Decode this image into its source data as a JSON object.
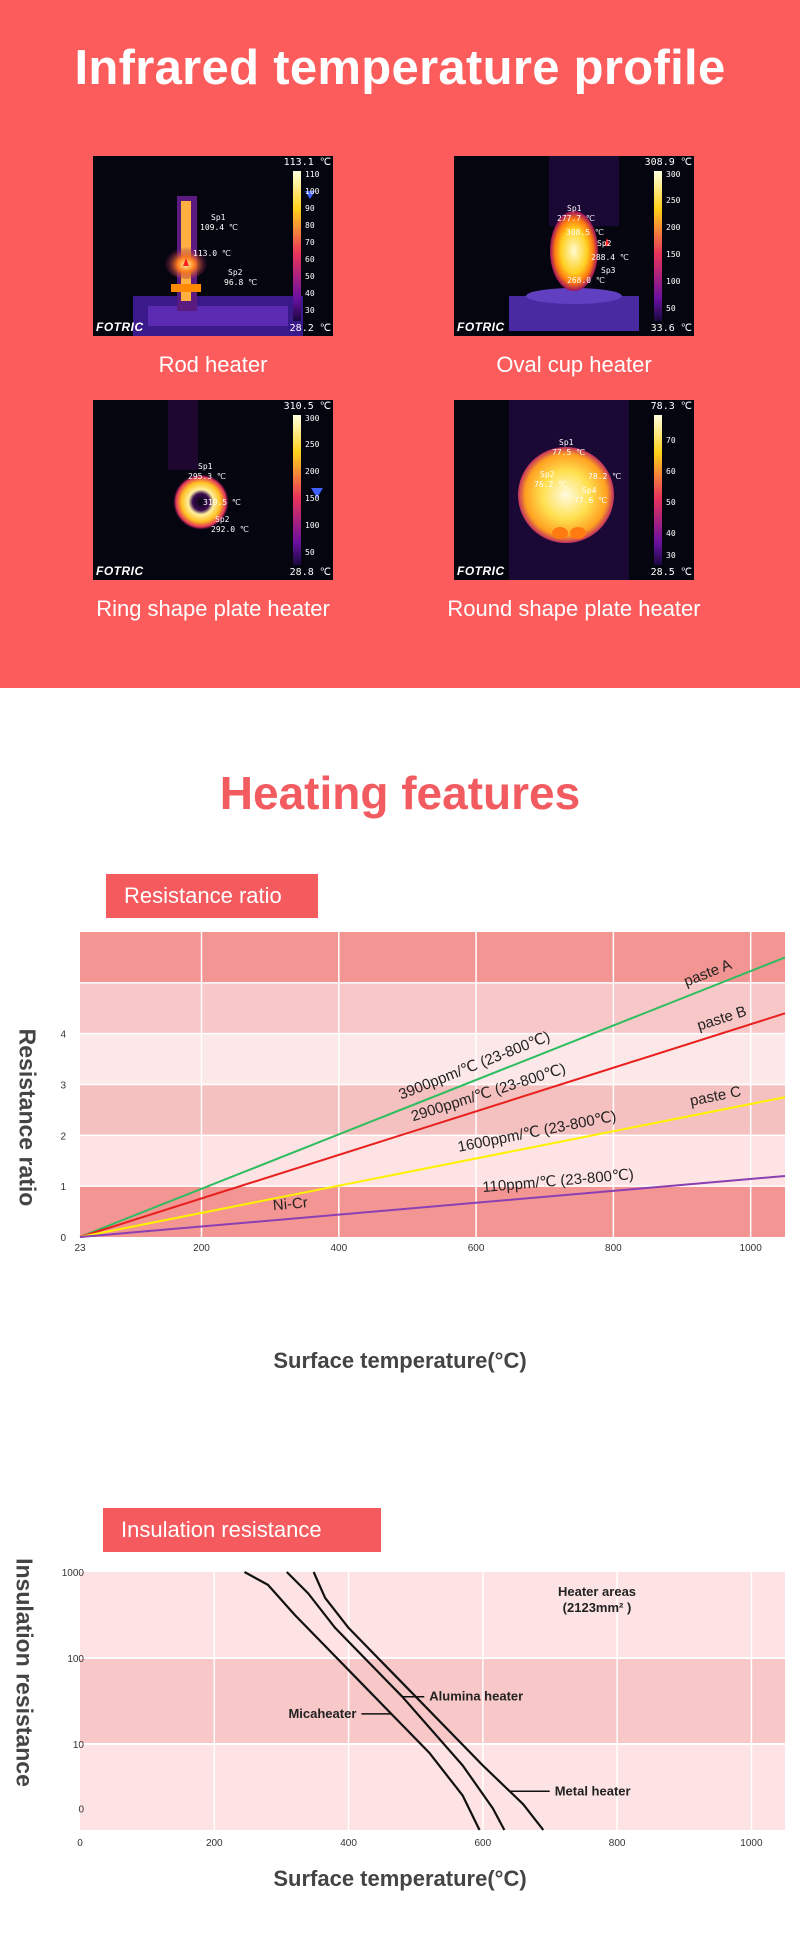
{
  "hero": {
    "title": "Infrared temperature profile",
    "brand": "FOTRIC",
    "images": [
      {
        "caption": "Rod heater",
        "scale_max": "113.1 ℃",
        "scale_min": "28.2 ℃",
        "ticks": [
          "110",
          "100",
          "90",
          "80",
          "70",
          "60",
          "50",
          "40",
          "30"
        ],
        "spots": [
          {
            "label": "Sp1",
            "value": "109.4 ℃"
          },
          {
            "label": "",
            "value": "113.0 ℃"
          },
          {
            "label": "Sp2",
            "value": "96.8 ℃"
          }
        ]
      },
      {
        "caption": "Oval cup heater",
        "scale_max": "308.9 ℃",
        "scale_min": "33.6 ℃",
        "ticks": [
          "300",
          "250",
          "200",
          "150",
          "100",
          "50"
        ],
        "spots": [
          {
            "label": "Sp1",
            "value": "277.7 ℃"
          },
          {
            "label": "",
            "value": "308.5 ℃"
          },
          {
            "label": "Sp2",
            "value": "288.4 ℃"
          },
          {
            "label": "Sp3",
            "value": "268.0 ℃"
          }
        ]
      },
      {
        "caption": "Ring shape plate heater",
        "scale_max": "310.5 ℃",
        "scale_min": "28.8 ℃",
        "ticks": [
          "300",
          "250",
          "200",
          "150",
          "100",
          "50"
        ],
        "spots": [
          {
            "label": "Sp1",
            "value": "295.3 ℃"
          },
          {
            "label": "",
            "value": "310.5 ℃"
          },
          {
            "label": "Sp2",
            "value": "292.0 ℃"
          }
        ]
      },
      {
        "caption": "Round shape plate heater",
        "scale_max": "78.3 ℃",
        "scale_min": "28.5 ℃",
        "ticks": [
          "70",
          "60",
          "50",
          "40",
          "30"
        ],
        "spots": [
          {
            "label": "Sp1",
            "value": "77.5 ℃"
          },
          {
            "label": "Sp2",
            "value": "76.2 ℃"
          },
          {
            "label": "Sp3",
            "value": "78.2 ℃"
          },
          {
            "label": "Sp4",
            "value": "77.6 ℃"
          }
        ]
      }
    ]
  },
  "heating": {
    "title": "Heating features"
  },
  "colors": {
    "hero_bg": "#fd5c5c",
    "accent": "#f25b5f",
    "badge": "#f55a5e"
  },
  "chart_data": [
    {
      "type": "line",
      "title": "Resistance ratio",
      "xlabel": "Surface temperature(°C)",
      "ylabel": "Resistance ratio",
      "x_ticks": [
        "23",
        "200",
        "400",
        "600",
        "800",
        "1000"
      ],
      "y_ticks": [
        "0",
        "1",
        "2",
        "3",
        "4"
      ],
      "xlim": [
        23,
        1050
      ],
      "ylim": [
        0,
        6
      ],
      "series": [
        {
          "name": "paste A",
          "annotation": "3900ppm/℃  (23-800℃)",
          "color": "#2fbd5f",
          "x": [
            23,
            1050
          ],
          "y": [
            0,
            5.5
          ]
        },
        {
          "name": "paste B",
          "annotation": "2900ppm/℃  (23-800℃)",
          "color": "#e8201e",
          "x": [
            23,
            1050
          ],
          "y": [
            0,
            4.4
          ]
        },
        {
          "name": "paste C",
          "annotation": "1600ppm/℃  (23-800℃)",
          "color": "#fff200",
          "x": [
            23,
            1050
          ],
          "y": [
            0,
            2.75
          ]
        },
        {
          "name": "Ni-Cr",
          "annotation": "110ppm/℃  (23-800℃)",
          "color": "#8b3fb3",
          "x": [
            23,
            1050
          ],
          "y": [
            0,
            1.2
          ]
        }
      ]
    },
    {
      "type": "line",
      "title": "Insulation resistance",
      "xlabel": "Surface temperature(°C)",
      "ylabel": "Insulation resistance",
      "x_ticks": [
        "0",
        "200",
        "400",
        "600",
        "800",
        "1000"
      ],
      "y_ticks": [
        "1000",
        "100",
        "10",
        "0"
      ],
      "xlim": [
        0,
        1050
      ],
      "ylim": [
        0,
        3
      ],
      "annotation": "Heater areas\n(2123mm² )",
      "annotation_lines": [
        "Heater areas",
        "(2123mm² )"
      ],
      "series": [
        {
          "name": "Micaheater",
          "x": [
            245,
            280,
            320,
            420,
            520,
            570,
            595
          ],
          "y": [
            3.0,
            2.85,
            2.5,
            1.7,
            0.9,
            0.4,
            0.0
          ]
        },
        {
          "name": "Alumina heater",
          "x": [
            308,
            340,
            380,
            480,
            570,
            615,
            632
          ],
          "y": [
            3.0,
            2.75,
            2.35,
            1.55,
            0.75,
            0.25,
            0.0
          ]
        },
        {
          "name": "Metal heater",
          "x": [
            348,
            365,
            400,
            500,
            600,
            660,
            690
          ],
          "y": [
            3.0,
            2.7,
            2.35,
            1.55,
            0.75,
            0.3,
            0.0
          ]
        }
      ]
    }
  ]
}
